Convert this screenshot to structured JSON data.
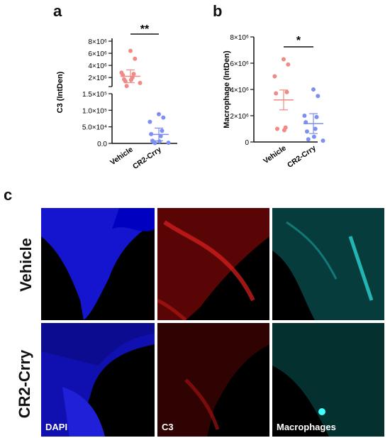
{
  "panels": {
    "a": "a",
    "b": "b",
    "c": "c"
  },
  "chart_data": [
    {
      "type": "scatter",
      "panel": "a",
      "ylabel": "C3 (IntDen)",
      "categories": [
        "Vehicle",
        "CR2-Crry"
      ],
      "upper_axis": {
        "ylim": [
          150000.0,
          8000000.0
        ],
        "ticks": [
          "8×10⁶",
          "6×10⁶",
          "4×10⁶",
          "2×10⁶"
        ]
      },
      "lower_axis": {
        "ylim": [
          0,
          150000.0
        ],
        "ticks": [
          "1.5×10⁵",
          "1.0×10⁵",
          "5.0×10⁴",
          "0.0"
        ]
      },
      "series": [
        {
          "name": "Vehicle",
          "color": "#f08a84",
          "values": [
            6400000.0,
            5100000.0,
            2800000.0,
            2600000.0,
            2400000.0,
            2000000.0,
            1700000.0,
            1600000.0,
            1400000.0,
            1100000.0,
            600000.0
          ],
          "mean": 2200000.0
        },
        {
          "name": "CR2-Crry",
          "color": "#7d8ff0",
          "values": [
            88000,
            78000,
            65000,
            38000,
            28000,
            22000,
            8000,
            6000,
            4000,
            2000,
            1000
          ],
          "mean": 27000
        }
      ],
      "significance": "**"
    },
    {
      "type": "scatter",
      "panel": "b",
      "ylabel": "Macrophage (IntDen)",
      "categories": [
        "Vehicle",
        "CR2-Crry"
      ],
      "ylim": [
        0,
        8000000.0
      ],
      "ticks": [
        "8×10⁶",
        "6×10⁶",
        "4×10⁶",
        "2×10⁶",
        "0"
      ],
      "series": [
        {
          "name": "Vehicle",
          "color": "#f08a84",
          "values": [
            6300000.0,
            5900000.0,
            5000000.0,
            3800000.0,
            3700000.0,
            1100000.0,
            1000000.0,
            900000.0
          ],
          "mean": 3200000.0
        },
        {
          "name": "CR2-Crry",
          "color": "#7d8ff0",
          "values": [
            4000000.0,
            3500000.0,
            2000000.0,
            1900000.0,
            1500000.0,
            1000000.0,
            800000.0,
            400000.0,
            200000.0,
            100000.0
          ],
          "mean": 1400000.0
        }
      ],
      "significance": "*"
    }
  ],
  "micrographs": {
    "rows": [
      "Vehicle",
      "CR2-Crry"
    ],
    "columns": [
      {
        "caption": "DAPI",
        "color": "#1414ff"
      },
      {
        "caption": "C3",
        "color": "#d41414"
      },
      {
        "caption": "Macrophages",
        "color": "#1ec8c8"
      }
    ]
  }
}
